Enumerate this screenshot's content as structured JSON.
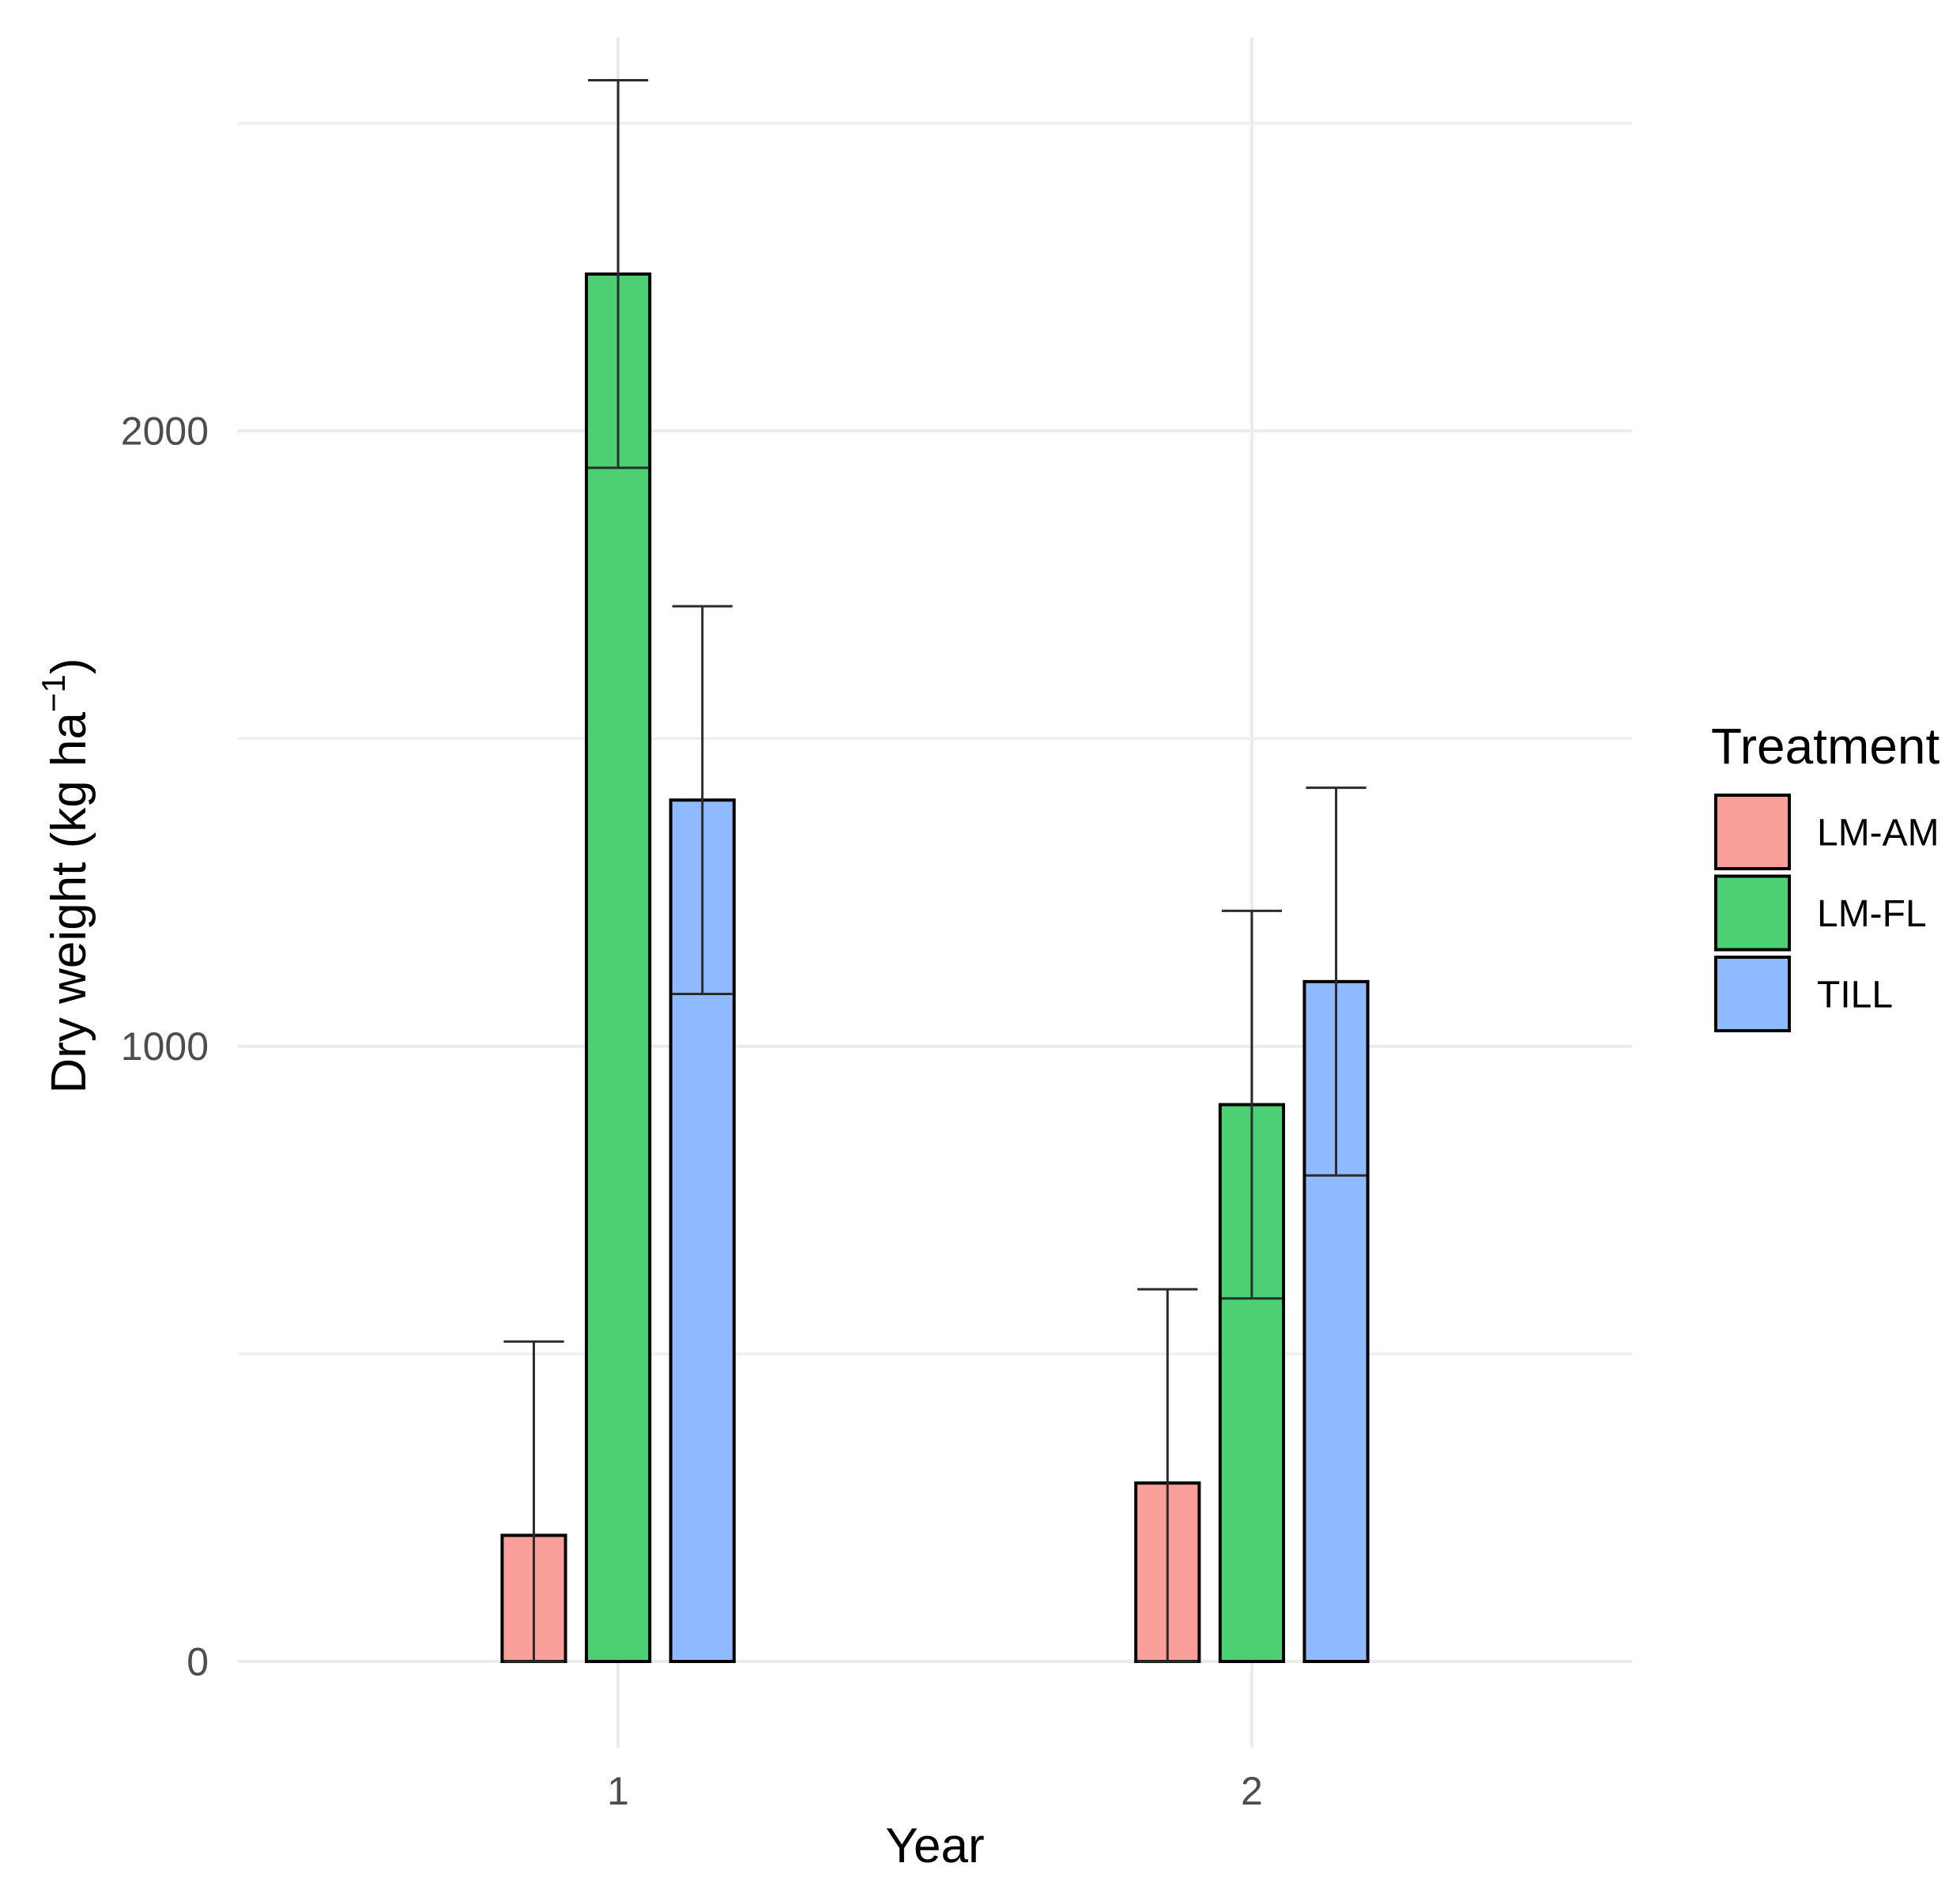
{
  "chart_data": {
    "type": "bar",
    "categories": [
      "1",
      "2"
    ],
    "xlabel": "Year",
    "ylabel": {
      "text": "Dry weight (kg ha",
      "superscript": "−1",
      "suffix": ")"
    },
    "ylim": [
      -140,
      2640
    ],
    "yticks": [
      0,
      1000,
      2000
    ],
    "ytick_labels": [
      "0",
      "1000",
      "2000"
    ],
    "yminor": [
      500,
      1500,
      2500
    ],
    "grid": true,
    "legend": {
      "title": "Treatment",
      "position": "right"
    },
    "series": [
      {
        "name": "LM-AM",
        "color": "#FA9F99",
        "values": [
          205,
          290
        ],
        "error_low": [
          0,
          0
        ],
        "error_high": [
          520,
          605
        ]
      },
      {
        "name": "LM-FL",
        "color": "#4DCF74",
        "values": [
          2255,
          905
        ],
        "error_low": [
          1940,
          590
        ],
        "error_high": [
          2570,
          1220
        ]
      },
      {
        "name": "TILL",
        "color": "#90BAFF",
        "values": [
          1400,
          1105
        ],
        "error_low": [
          1085,
          790
        ],
        "error_high": [
          1715,
          1420
        ]
      }
    ]
  }
}
